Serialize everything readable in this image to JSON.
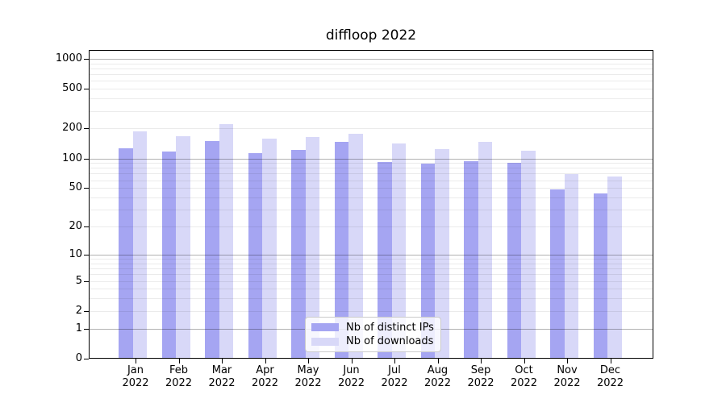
{
  "chart_data": {
    "type": "bar",
    "title": "diffloop 2022",
    "categories": [
      "Jan 2022",
      "Feb 2022",
      "Mar 2022",
      "Apr 2022",
      "May 2022",
      "Jun 2022",
      "Jul 2022",
      "Aug 2022",
      "Sep 2022",
      "Oct 2022",
      "Nov 2022",
      "Dec 2022"
    ],
    "series": [
      {
        "name": "Nb of distinct IPs",
        "color": "#a5a5f2",
        "values": [
          126,
          118,
          151,
          114,
          122,
          146,
          92,
          88,
          94,
          91,
          48,
          44
        ]
      },
      {
        "name": "Nb of downloads",
        "color": "#d8d8f8",
        "values": [
          186,
          167,
          220,
          158,
          163,
          178,
          142,
          124,
          146,
          120,
          69,
          66
        ]
      }
    ],
    "y_scale": "log1p",
    "y_tick_labels": [
      0,
      1,
      2,
      5,
      10,
      20,
      50,
      100,
      200,
      500,
      1000
    ],
    "y_major_gridlines": [
      1,
      10,
      100,
      1000
    ],
    "y_minor_gridlines": [
      2,
      3,
      4,
      5,
      6,
      7,
      8,
      9,
      20,
      30,
      40,
      50,
      60,
      70,
      80,
      90,
      200,
      300,
      400,
      500,
      600,
      700,
      800,
      900
    ],
    "ylim": [
      0,
      1230
    ],
    "xlabel": "",
    "ylabel": "",
    "grid": true,
    "legend_position": "lower center"
  }
}
